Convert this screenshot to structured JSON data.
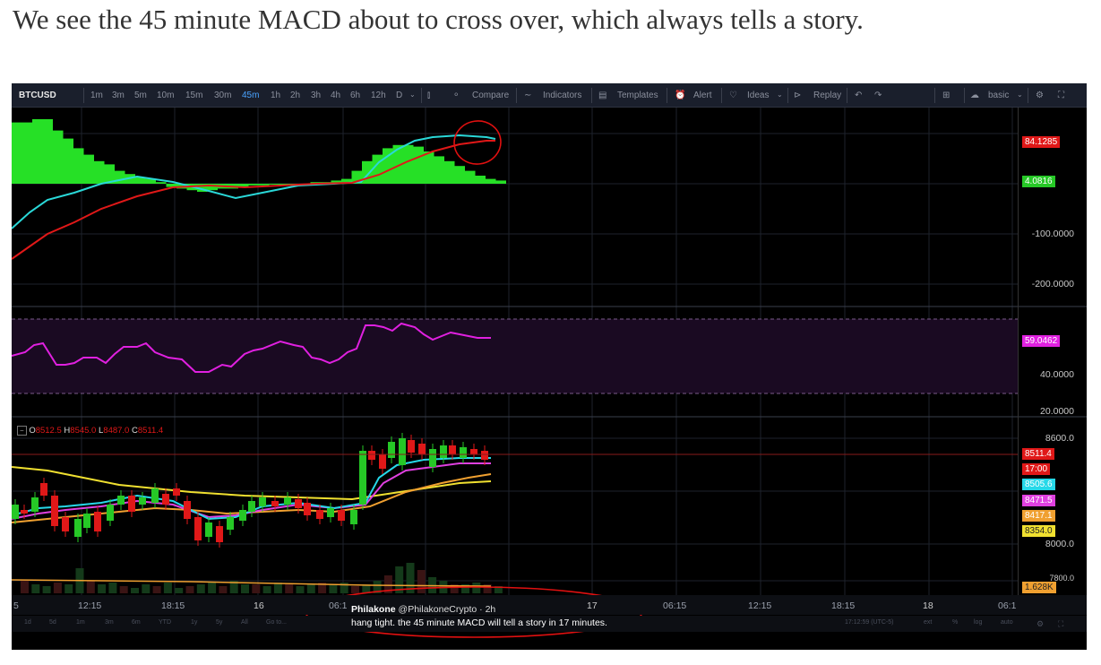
{
  "heading": "We see the 45 minute MACD about to cross over, which always tells a story.",
  "toolbar": {
    "symbol": "BTCUSD",
    "intervals": [
      "1m",
      "3m",
      "5m",
      "10m",
      "15m",
      "30m",
      "45m",
      "1h",
      "2h",
      "3h",
      "4h",
      "6h",
      "12h",
      "D"
    ],
    "active_interval": "45m",
    "compare": "Compare",
    "indicators": "Indicators",
    "templates": "Templates",
    "alert": "Alert",
    "ideas": "Ideas",
    "replay": "Replay",
    "layout": "basic"
  },
  "macd_pane": {
    "price_labels": [
      "-100.0000",
      "-200.0000"
    ],
    "tag_top": "84.1285",
    "tag_green": "4.0816"
  },
  "rsi_pane": {
    "value": "59.0462",
    "level_mid": "40.0000",
    "level_low": "20.0000"
  },
  "price_pane": {
    "ohlc": {
      "o_label": "O",
      "o": "8512.5",
      "h_label": "H",
      "h": "8545.0",
      "l_label": "L",
      "l": "8487.0",
      "c_label": "C",
      "c": "8511.4"
    },
    "axis_top": "8600.0",
    "axis_mid": "8000.0",
    "axis_low": "7800.0",
    "tags": {
      "price": "8511.4",
      "countdown": "17:00",
      "ma1": "8505.6",
      "ma2": "8471.5",
      "ma3": "8417.1",
      "ma4": "8354.0",
      "volume": "1.628K"
    }
  },
  "time_axis": [
    "5",
    "12:15",
    "18:15",
    "16",
    "06:1",
    "17",
    "06:15",
    "12:15",
    "18:15",
    "18",
    "06:1"
  ],
  "bottom_bar": {
    "ranges": [
      "1d",
      "5d",
      "1m",
      "3m",
      "6m",
      "YTD",
      "1y",
      "5y",
      "All",
      "Go to..."
    ],
    "clock": "17:12:59 (UTC-5)",
    "opts": [
      "ext",
      "%",
      "log",
      "auto"
    ]
  },
  "tweet": {
    "name": "Philakone",
    "handle": "@PhilakoneCrypto",
    "age": "· 2h",
    "text": "hang tight. the 45 minute MACD will tell a story in 17 minutes."
  },
  "colors": {
    "up": "#26c826",
    "down": "#e01818",
    "macd_line": "#2ad8d8",
    "signal_line": "#e01818",
    "rsi": "#e020e0",
    "ma_cyan": "#26d8e8",
    "ma_magenta": "#e040e0",
    "ma_orange": "#f0a030",
    "ma_yellow": "#f0e030",
    "annotation": "#e01010"
  }
}
